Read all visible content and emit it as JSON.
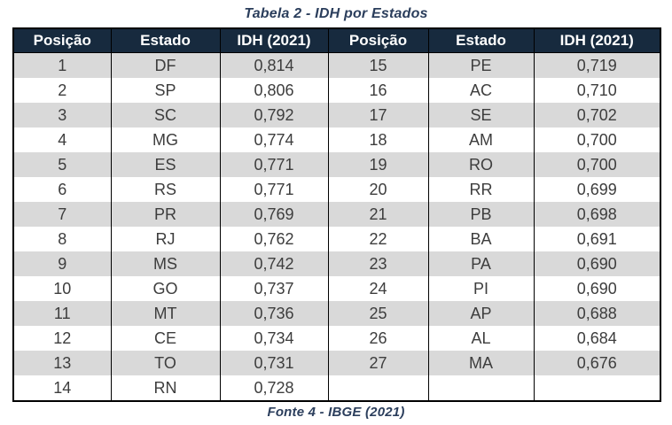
{
  "title": "Tabela 2 - IDH por Estados",
  "source": "Fonte 4 - IBGE (2021)",
  "colors": {
    "header_bg": "#172a3e",
    "header_text": "#ffffff",
    "stripe_row": "#d9d9d9",
    "plain_row": "#ffffff",
    "caption_text": "#2b3e5c",
    "border": "#000000",
    "body_text": "#3d3d3d"
  },
  "table": {
    "headers": [
      "Posição",
      "Estado",
      "IDH (2021)",
      "Posição",
      "Estado",
      "IDH (2021)"
    ],
    "rows": [
      [
        "1",
        "DF",
        "0,814",
        "15",
        "PE",
        "0,719"
      ],
      [
        "2",
        "SP",
        "0,806",
        "16",
        "AC",
        "0,710"
      ],
      [
        "3",
        "SC",
        "0,792",
        "17",
        "SE",
        "0,702"
      ],
      [
        "4",
        "MG",
        "0,774",
        "18",
        "AM",
        "0,700"
      ],
      [
        "5",
        "ES",
        "0,771",
        "19",
        "RO",
        "0,700"
      ],
      [
        "6",
        "RS",
        "0,771",
        "20",
        "RR",
        "0,699"
      ],
      [
        "7",
        "PR",
        "0,769",
        "21",
        "PB",
        "0,698"
      ],
      [
        "8",
        "RJ",
        "0,762",
        "22",
        "BA",
        "0,691"
      ],
      [
        "9",
        "MS",
        "0,742",
        "23",
        "PA",
        "0,690"
      ],
      [
        "10",
        "GO",
        "0,737",
        "24",
        "PI",
        "0,690"
      ],
      [
        "11",
        "MT",
        "0,736",
        "25",
        "AP",
        "0,688"
      ],
      [
        "12",
        "CE",
        "0,734",
        "26",
        "AL",
        "0,684"
      ],
      [
        "13",
        "TO",
        "0,731",
        "27",
        "MA",
        "0,676"
      ],
      [
        "14",
        "RN",
        "0,728",
        "",
        "",
        ""
      ]
    ]
  },
  "chart_data": {
    "type": "table",
    "title": "Tabela 2 - IDH por Estados",
    "caption": "Fonte 4 - IBGE (2021)",
    "columns": [
      "Posição",
      "Estado",
      "IDH (2021)"
    ],
    "records": [
      {
        "posicao": 1,
        "estado": "DF",
        "idh_2021": "0,814"
      },
      {
        "posicao": 2,
        "estado": "SP",
        "idh_2021": "0,806"
      },
      {
        "posicao": 3,
        "estado": "SC",
        "idh_2021": "0,792"
      },
      {
        "posicao": 4,
        "estado": "MG",
        "idh_2021": "0,774"
      },
      {
        "posicao": 5,
        "estado": "ES",
        "idh_2021": "0,771"
      },
      {
        "posicao": 6,
        "estado": "RS",
        "idh_2021": "0,771"
      },
      {
        "posicao": 7,
        "estado": "PR",
        "idh_2021": "0,769"
      },
      {
        "posicao": 8,
        "estado": "RJ",
        "idh_2021": "0,762"
      },
      {
        "posicao": 9,
        "estado": "MS",
        "idh_2021": "0,742"
      },
      {
        "posicao": 10,
        "estado": "GO",
        "idh_2021": "0,737"
      },
      {
        "posicao": 11,
        "estado": "MT",
        "idh_2021": "0,736"
      },
      {
        "posicao": 12,
        "estado": "CE",
        "idh_2021": "0,734"
      },
      {
        "posicao": 13,
        "estado": "TO",
        "idh_2021": "0,731"
      },
      {
        "posicao": 14,
        "estado": "RN",
        "idh_2021": "0,728"
      },
      {
        "posicao": 15,
        "estado": "PE",
        "idh_2021": "0,719"
      },
      {
        "posicao": 16,
        "estado": "AC",
        "idh_2021": "0,710"
      },
      {
        "posicao": 17,
        "estado": "SE",
        "idh_2021": "0,702"
      },
      {
        "posicao": 18,
        "estado": "AM",
        "idh_2021": "0,700"
      },
      {
        "posicao": 19,
        "estado": "RO",
        "idh_2021": "0,700"
      },
      {
        "posicao": 20,
        "estado": "RR",
        "idh_2021": "0,699"
      },
      {
        "posicao": 21,
        "estado": "PB",
        "idh_2021": "0,698"
      },
      {
        "posicao": 22,
        "estado": "BA",
        "idh_2021": "0,691"
      },
      {
        "posicao": 23,
        "estado": "PA",
        "idh_2021": "0,690"
      },
      {
        "posicao": 24,
        "estado": "PI",
        "idh_2021": "0,690"
      },
      {
        "posicao": 25,
        "estado": "AP",
        "idh_2021": "0,688"
      },
      {
        "posicao": 26,
        "estado": "AL",
        "idh_2021": "0,684"
      },
      {
        "posicao": 27,
        "estado": "MA",
        "idh_2021": "0,676"
      }
    ]
  }
}
